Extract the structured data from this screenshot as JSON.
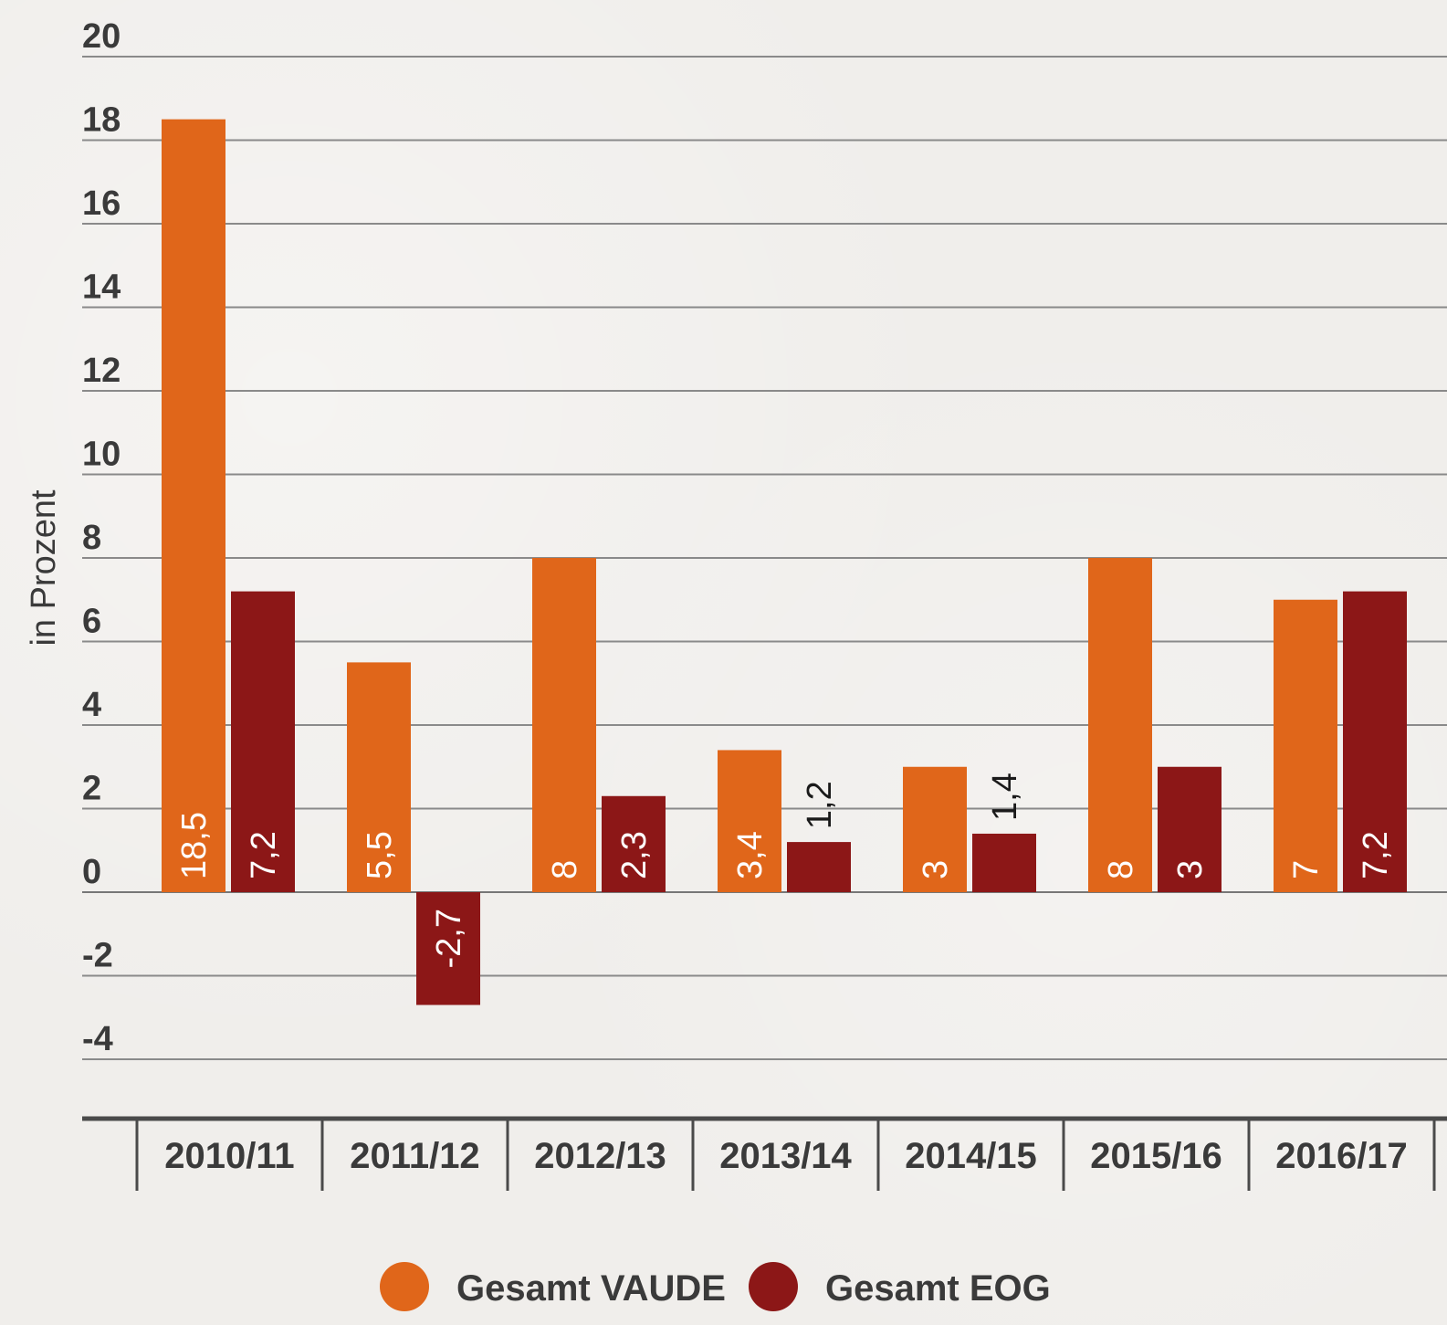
{
  "chart_data": {
    "type": "bar",
    "title": "",
    "xlabel": "",
    "ylabel": "in Prozent",
    "ylim": [
      -4,
      20
    ],
    "yticks": [
      20,
      18,
      16,
      14,
      12,
      10,
      8,
      6,
      4,
      2,
      0,
      -2,
      -4
    ],
    "grid": true,
    "legend_position": "bottom",
    "categories": [
      "2010/11",
      "2011/12",
      "2012/13",
      "2013/14",
      "2014/15",
      "2015/16",
      "2016/17"
    ],
    "series": [
      {
        "name": "Gesamt VAUDE",
        "color": "#e0661a",
        "values": [
          18.5,
          5.5,
          8,
          3.4,
          3,
          8,
          7
        ],
        "labels": [
          "18,5",
          "5,5",
          "8",
          "3,4",
          "3",
          "8",
          "7"
        ]
      },
      {
        "name": "Gesamt EOG",
        "color": "#8c1717",
        "values": [
          7.2,
          -2.7,
          2.3,
          1.2,
          1.4,
          3,
          7.2
        ],
        "labels": [
          "7,2",
          "-2,7",
          "2,3",
          "1,2",
          "1,4",
          "3",
          "7,2"
        ]
      }
    ]
  }
}
